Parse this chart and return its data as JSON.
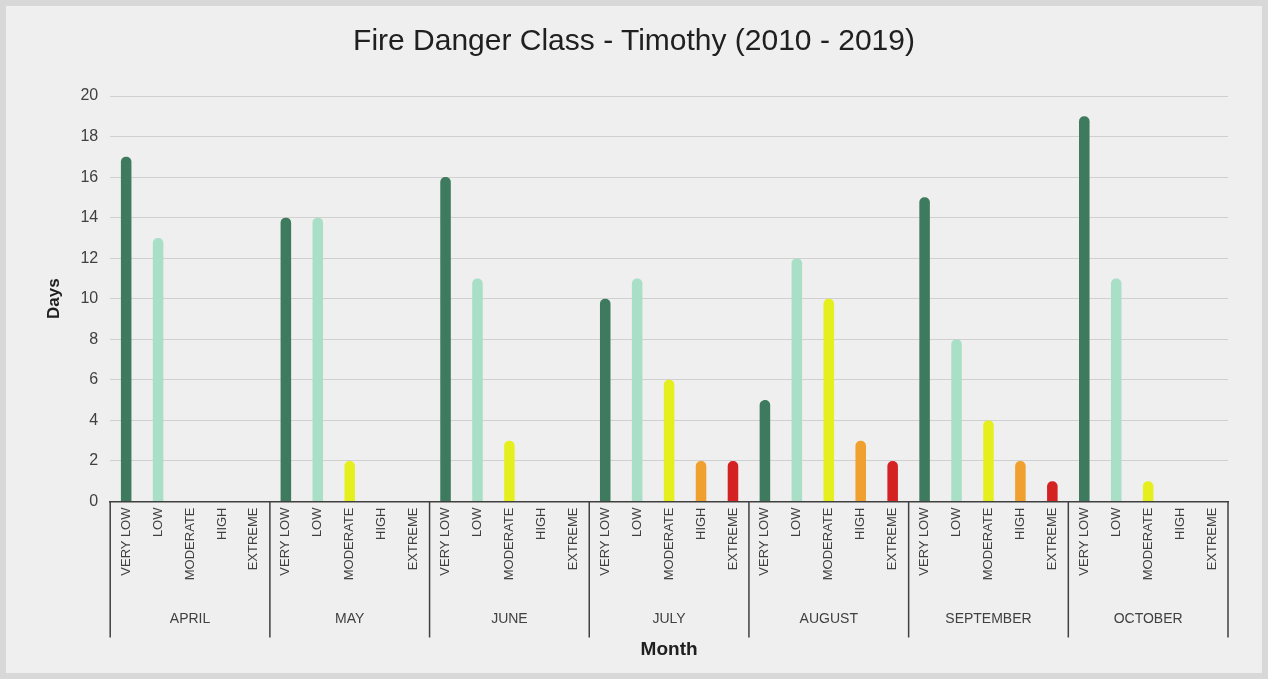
{
  "chart_data": {
    "type": "bar",
    "title": "Fire Danger Class - Timothy (2010 - 2019)",
    "xlabel": "Month",
    "ylabel": "Days",
    "categories": [
      "VERY LOW",
      "LOW",
      "MODERATE",
      "HIGH",
      "EXTREME",
      "VERY LOW",
      "LOW",
      "MODERATE",
      "HIGH",
      "EXTREME",
      "VERY LOW",
      "LOW",
      "MODERATE",
      "HIGH",
      "EXTREME",
      "VERY LOW",
      "LOW",
      "MODERATE",
      "HIGH",
      "EXTREME",
      "VERY LOW",
      "LOW",
      "MODERATE",
      "HIGH",
      "EXTREME",
      "VERY LOW",
      "LOW",
      "MODERATE",
      "HIGH",
      "EXTREME",
      "VERY LOW",
      "LOW",
      "MODERATE",
      "HIGH",
      "EXTREME"
    ],
    "values": [
      17,
      13,
      0,
      0,
      0,
      14,
      14,
      2,
      0,
      0,
      16,
      11,
      3,
      0,
      0,
      10,
      11,
      6,
      2,
      2,
      5,
      12,
      10,
      3,
      2,
      15,
      8,
      4,
      2,
      1,
      19,
      11,
      1,
      0,
      0
    ],
    "colors": [
      "#3d7a5e",
      "#a8dfc6",
      "#e6ef1e",
      "#f0a02e",
      "#d42222",
      "#3d7a5e",
      "#a8dfc6",
      "#e6ef1e",
      "#f0a02e",
      "#d42222",
      "#3d7a5e",
      "#a8dfc6",
      "#e6ef1e",
      "#f0a02e",
      "#d42222",
      "#3d7a5e",
      "#a8dfc6",
      "#e6ef1e",
      "#f0a02e",
      "#d42222",
      "#3d7a5e",
      "#a8dfc6",
      "#e6ef1e",
      "#f0a02e",
      "#d42222",
      "#3d7a5e",
      "#a8dfc6",
      "#e6ef1e",
      "#f0a02e",
      "#d42222",
      "#3d7a5e",
      "#a8dfc6",
      "#e6ef1e",
      "#f0a02e",
      "#d42222"
    ],
    "annotations": [
      "APRIL",
      "MAY",
      "JUNE",
      "JULY",
      "AUGUST",
      "SEPTEMBER",
      "OCTOBER"
    ],
    "ylim": [
      0,
      20
    ],
    "yticks": [
      0,
      2,
      4,
      6,
      8,
      10,
      12,
      14,
      16,
      18,
      20
    ],
    "grid": "y"
  }
}
